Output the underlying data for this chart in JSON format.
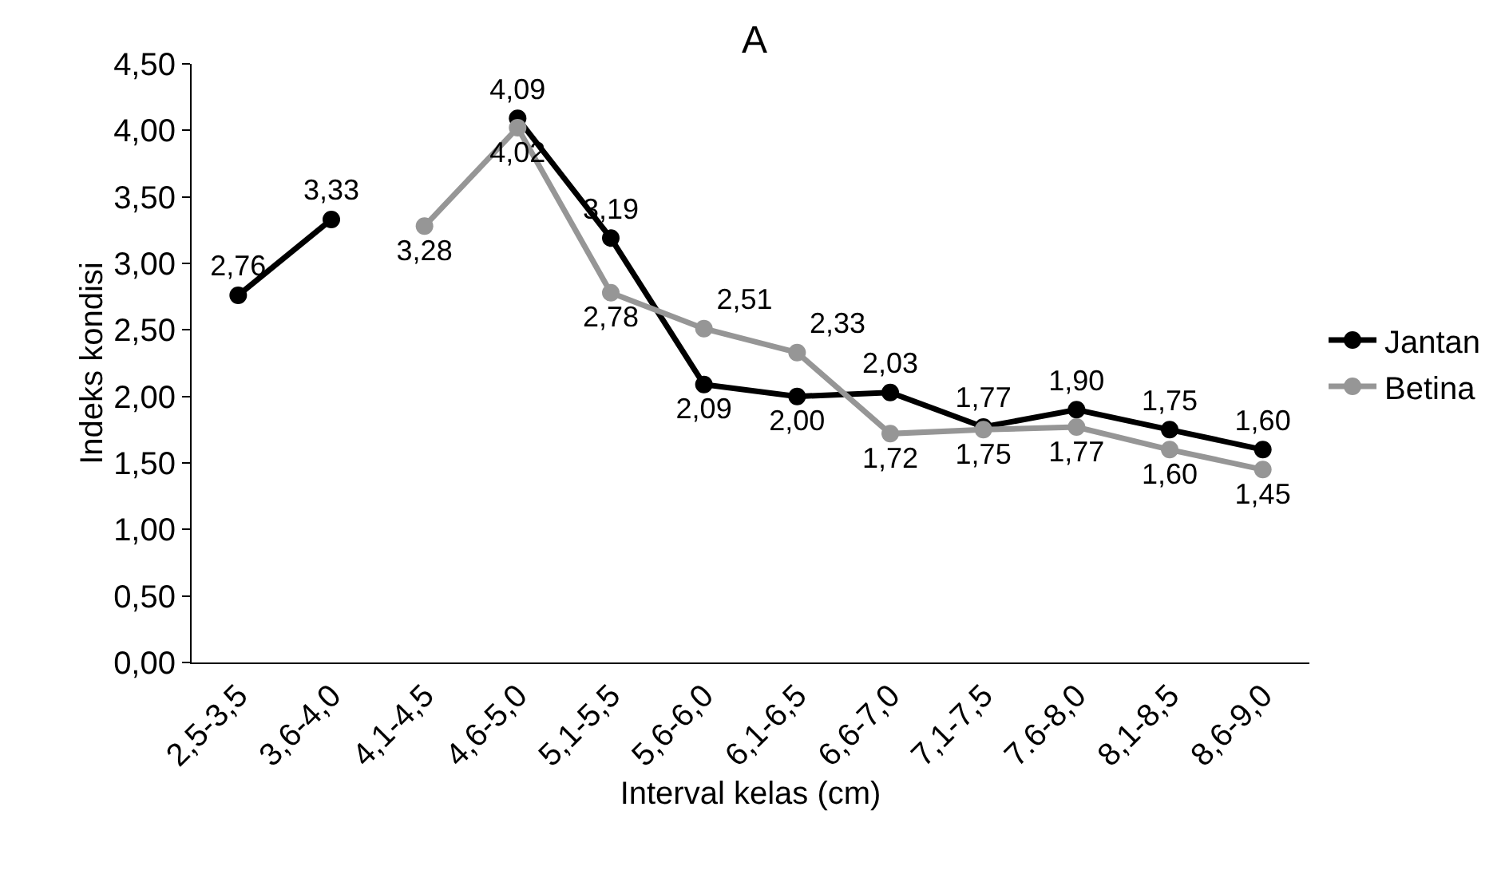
{
  "chart_data": {
    "type": "line",
    "title": "A",
    "xlabel": "Interval kelas (cm)",
    "ylabel": "Indeks kondisi",
    "categories": [
      "2,5-3,5",
      "3,6-4,0",
      "4,1-4,5",
      "4,6-5,0",
      "5,1-5,5",
      "5,6-6,0",
      "6,1-6,5",
      "6,6-7,0",
      "7,1-7,5",
      "7.6-8,0",
      "8,1-8,5",
      "8,6-9,0"
    ],
    "series": [
      {
        "name": "Jantan",
        "color": "#000000",
        "values": [
          2.76,
          3.33,
          null,
          4.09,
          3.19,
          2.09,
          2.0,
          2.03,
          1.77,
          1.9,
          1.75,
          1.6
        ],
        "value_labels": [
          "2,76",
          "3,33",
          null,
          "4,09",
          "3,19",
          "2,09",
          "2,00",
          "2,03",
          "1,77",
          "1,90",
          "1,75",
          "1,60"
        ]
      },
      {
        "name": "Betina",
        "color": "#969696",
        "values": [
          null,
          null,
          3.28,
          4.02,
          2.78,
          2.51,
          2.33,
          1.72,
          1.75,
          1.77,
          1.6,
          1.45
        ],
        "value_labels": [
          null,
          null,
          "3,28",
          "4,02",
          "2,78",
          "2,51",
          "2,33",
          "1,72",
          "1,75",
          "1,77",
          "1,60",
          "1,45"
        ]
      }
    ],
    "ylim": [
      0,
      4.5
    ],
    "yticks": [
      {
        "value": 0,
        "label": "0,00"
      },
      {
        "value": 0.5,
        "label": "0,50"
      },
      {
        "value": 1,
        "label": "1,00"
      },
      {
        "value": 1.5,
        "label": "1,50"
      },
      {
        "value": 2,
        "label": "2,00"
      },
      {
        "value": 2.5,
        "label": "2,50"
      },
      {
        "value": 3,
        "label": "3,00"
      },
      {
        "value": 3.5,
        "label": "3,50"
      },
      {
        "value": 4,
        "label": "4,00"
      },
      {
        "value": 4.5,
        "label": "4,50"
      }
    ],
    "grid": false,
    "legend": "right",
    "marker": "circle",
    "line_style": "solid"
  }
}
